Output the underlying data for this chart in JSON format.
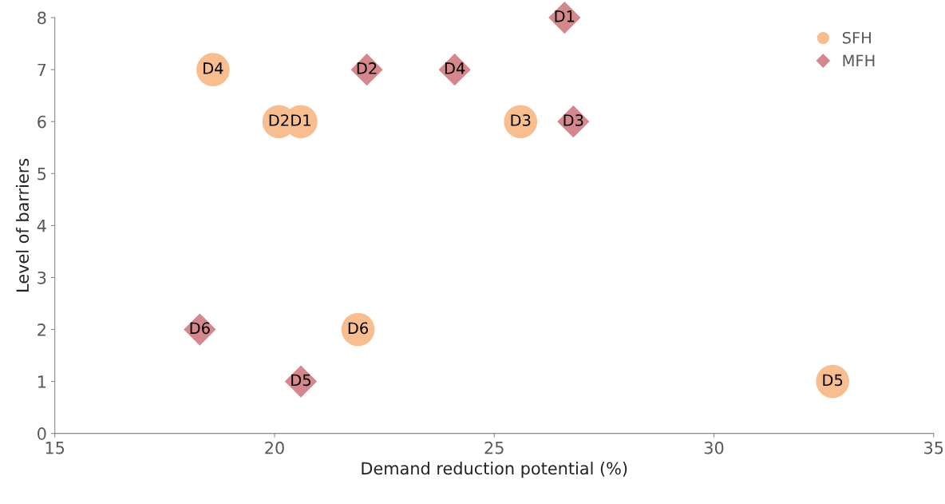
{
  "chart_data": {
    "type": "scatter",
    "xlabel": "Demand reduction potential (%)",
    "ylabel": "Level of barriers",
    "xlim": [
      15,
      35
    ],
    "xticks": [
      15,
      20,
      25,
      30,
      35
    ],
    "ylim": [
      0,
      8
    ],
    "yticks": [
      0,
      1,
      2,
      3,
      4,
      5,
      6,
      7,
      8
    ],
    "grid": false,
    "legend": "top right",
    "series": [
      {
        "name": "SFH",
        "color": "#f9be8f",
        "marker": "circle",
        "x": [
          20.6,
          20.1,
          25.6,
          18.6,
          32.7,
          21.9
        ],
        "values": [
          6,
          6,
          6,
          7,
          1,
          2
        ]
      },
      {
        "name": "MFH",
        "color": "#d4878c",
        "marker": "diamond",
        "x": [
          26.6,
          22.1,
          26.8,
          24.1,
          20.6,
          18.3
        ],
        "values": [
          8,
          7,
          6,
          7,
          1,
          2
        ]
      }
    ],
    "annotations": [
      {
        "text": "D1",
        "x": 20.6,
        "y": 6
      },
      {
        "text": "D2",
        "x": 20.1,
        "y": 6
      },
      {
        "text": "D3",
        "x": 25.6,
        "y": 6
      },
      {
        "text": "D4",
        "x": 18.6,
        "y": 7
      },
      {
        "text": "D5",
        "x": 32.7,
        "y": 1
      },
      {
        "text": "D6",
        "x": 21.9,
        "y": 2
      },
      {
        "text": "D1",
        "x": 26.6,
        "y": 8
      },
      {
        "text": "D2",
        "x": 22.1,
        "y": 7
      },
      {
        "text": "D3",
        "x": 26.8,
        "y": 6
      },
      {
        "text": "D4",
        "x": 24.1,
        "y": 7
      },
      {
        "text": "D5",
        "x": 20.6,
        "y": 1
      },
      {
        "text": "D6",
        "x": 18.3,
        "y": 2
      }
    ]
  }
}
